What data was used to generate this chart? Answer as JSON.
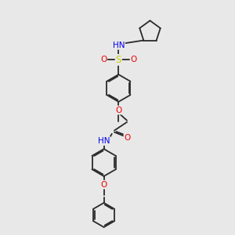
{
  "bg_color": "#e8e8e8",
  "bond_color": "#2a2a2a",
  "lw": 1.3,
  "atom_colors": {
    "N": "#0000ee",
    "O": "#ee0000",
    "S": "#cccc00",
    "C": "#2a2a2a"
  },
  "fs": 7.0
}
